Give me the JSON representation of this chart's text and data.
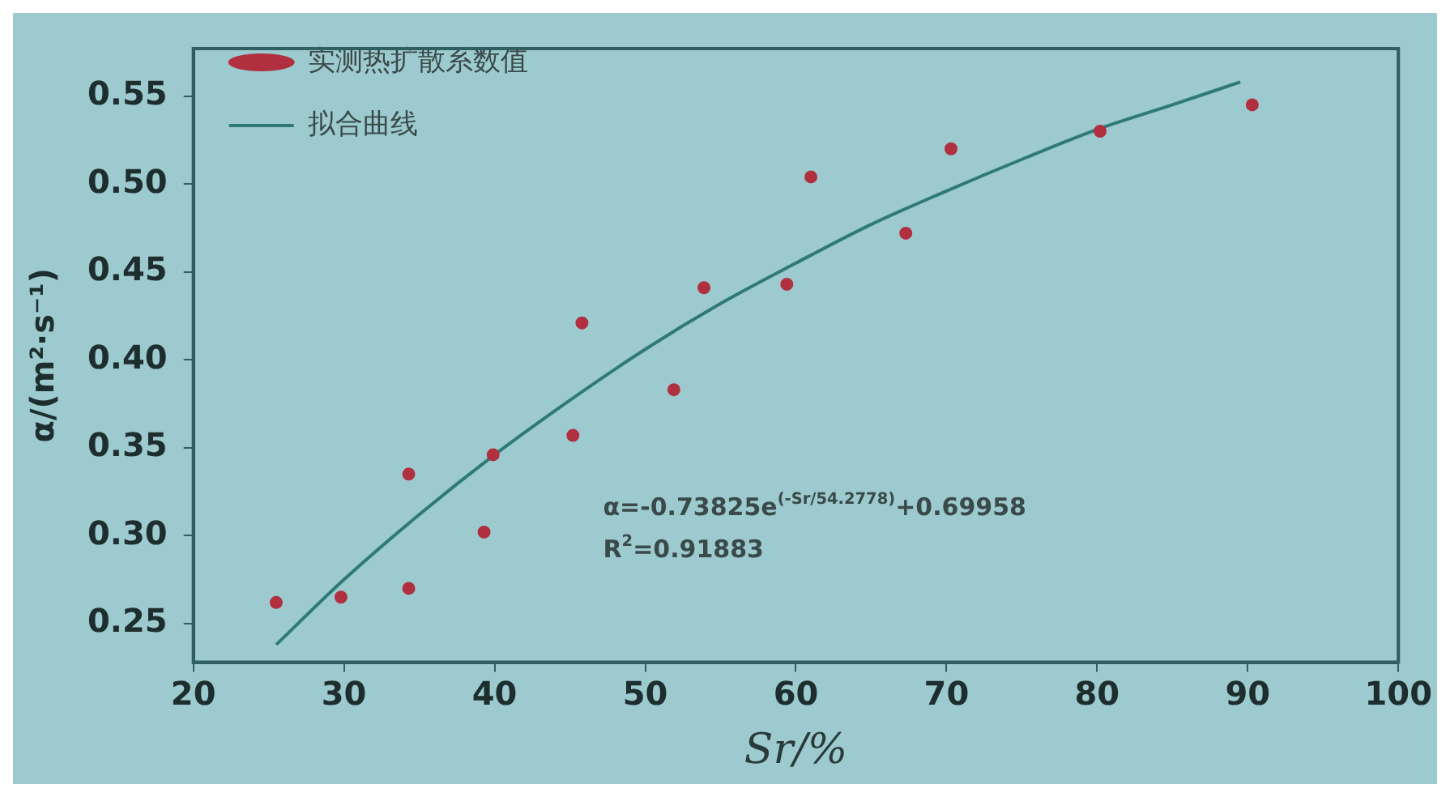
{
  "chart_data": {
    "type": "scatter",
    "xlabel": "Sr/%",
    "ylabel": "α/(m²·s⁻¹)",
    "xlim": [
      20,
      100
    ],
    "xticks": [
      20,
      30,
      40,
      50,
      60,
      70,
      80,
      90,
      100
    ],
    "ylim": [
      0.228,
      0.577
    ],
    "yticks": [
      0.25,
      {
        "value": 0.3,
        "label": "0.30"
      },
      0.35,
      {
        "value": 0.4,
        "label": "0.40"
      },
      0.45,
      {
        "value": 0.5,
        "label": "0.50"
      },
      0.55
    ],
    "legend": "top left",
    "series": [
      {
        "name": "实测热扩散系数值",
        "marker": "circle",
        "color": "#b03040",
        "x": [
          25.5,
          29.8,
          34.3,
          34.3,
          39.3,
          39.9,
          45.2,
          45.8,
          51.9,
          53.9,
          59.4,
          61.0,
          67.3,
          70.3,
          80.2,
          90.3
        ],
        "values": [
          0.262,
          0.265,
          0.27,
          0.335,
          0.302,
          0.346,
          0.357,
          0.421,
          0.383,
          0.441,
          0.443,
          0.504,
          0.472,
          0.52,
          0.53,
          0.545
        ]
      },
      {
        "name": "拟合曲线",
        "type": "line",
        "marker": "none",
        "color": "#2f7a78",
        "x": [
          25.5,
          30,
          35,
          40,
          45,
          50,
          55,
          60,
          65,
          70,
          75,
          80,
          85,
          89.5
        ],
        "values": [
          0.238,
          0.275,
          0.312,
          0.346,
          0.377,
          0.406,
          0.432,
          0.455,
          0.477,
          0.496,
          0.514,
          0.531,
          0.545,
          0.558
        ]
      }
    ],
    "annotations": [
      "α=-0.73825e$^{(-Sr/54.2778)}$+0.69958",
      "R$^{2}$=0.91883"
    ]
  }
}
